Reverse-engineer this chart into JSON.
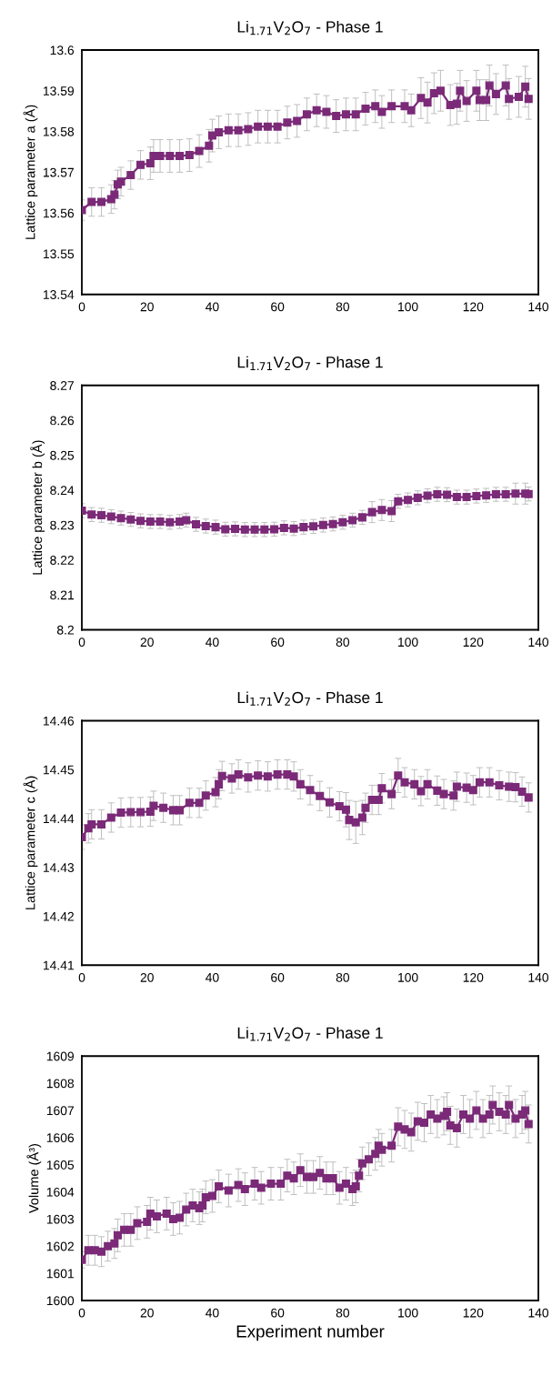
{
  "chart_data": [
    {
      "type": "line",
      "title": "Li$_{1.71}$V$_{2}$O$_{7}$ - Phase 1",
      "ylabel": "Lattice parameter a (Å)",
      "xlim": [
        0,
        140
      ],
      "xticks": [
        0,
        20,
        40,
        60,
        80,
        100,
        120,
        140
      ],
      "ylim": [
        13.54,
        13.6
      ],
      "yticks": [
        13.54,
        13.55,
        13.56,
        13.57,
        13.58,
        13.59,
        13.6
      ],
      "marker": "square",
      "grid": false,
      "series": [
        {
          "color": "#7b2a78",
          "x": [
            0,
            3,
            6,
            9,
            10,
            11,
            12,
            15,
            18,
            21,
            22,
            24,
            27,
            30,
            33,
            36,
            39,
            40,
            42,
            45,
            48,
            51,
            54,
            57,
            60,
            63,
            66,
            69,
            72,
            75,
            78,
            81,
            84,
            87,
            90,
            92,
            95,
            99,
            101,
            104,
            106,
            108,
            110,
            113,
            115,
            116,
            118,
            121,
            122,
            124,
            125,
            127,
            130,
            131,
            134,
            136,
            137
          ],
          "values": [
            13.5607,
            13.5627,
            13.5627,
            13.5634,
            13.5645,
            13.567,
            13.5677,
            13.5693,
            13.5718,
            13.5722,
            13.574,
            13.574,
            13.574,
            13.574,
            13.5742,
            13.5752,
            13.5765,
            13.579,
            13.5798,
            13.5803,
            13.5803,
            13.5806,
            13.5812,
            13.5812,
            13.5812,
            13.5822,
            13.5826,
            13.5842,
            13.5852,
            13.5848,
            13.5838,
            13.5842,
            13.5842,
            13.5856,
            13.5862,
            13.5848,
            13.5862,
            13.5862,
            13.5852,
            13.5882,
            13.5871,
            13.5894,
            13.59,
            13.5865,
            13.5868,
            13.59,
            13.5875,
            13.59,
            13.5877,
            13.5877,
            13.5913,
            13.5892,
            13.5913,
            13.588,
            13.5885,
            13.591,
            13.588
          ],
          "errors": [
            0.0025,
            0.0035,
            0.0035,
            0.0035,
            0.0035,
            0.0035,
            0.0035,
            0.0035,
            0.0035,
            0.004,
            0.004,
            0.004,
            0.004,
            0.004,
            0.004,
            0.004,
            0.004,
            0.004,
            0.004,
            0.004,
            0.004,
            0.004,
            0.004,
            0.004,
            0.004,
            0.004,
            0.004,
            0.004,
            0.004,
            0.004,
            0.004,
            0.004,
            0.004,
            0.004,
            0.004,
            0.004,
            0.004,
            0.004,
            0.004,
            0.005,
            0.005,
            0.005,
            0.005,
            0.005,
            0.005,
            0.005,
            0.005,
            0.005,
            0.005,
            0.005,
            0.005,
            0.005,
            0.005,
            0.005,
            0.005,
            0.005,
            0.005
          ]
        }
      ]
    },
    {
      "type": "line",
      "title": "Li$_{1.71}$V$_{2}$O$_{7}$ - Phase 1",
      "ylabel": "Lattice parameter b (Å)",
      "xlim": [
        0,
        140
      ],
      "xticks": [
        0,
        20,
        40,
        60,
        80,
        100,
        120,
        140
      ],
      "ylim": [
        8.2,
        8.27
      ],
      "yticks": [
        8.2,
        8.21,
        8.22,
        8.23,
        8.24,
        8.25,
        8.26,
        8.27
      ],
      "marker": "square",
      "grid": false,
      "series": [
        {
          "color": "#7b2a78",
          "x": [
            0,
            3,
            6,
            9,
            12,
            15,
            18,
            21,
            24,
            27,
            30,
            32,
            35,
            38,
            41,
            44,
            47,
            50,
            53,
            56,
            59,
            62,
            65,
            68,
            71,
            74,
            77,
            80,
            83,
            86,
            89,
            92,
            95,
            97,
            100,
            103,
            106,
            109,
            112,
            115,
            118,
            121,
            124,
            127,
            130,
            133,
            136,
            137
          ],
          "values": [
            8.2341,
            8.233,
            8.2328,
            8.2324,
            8.232,
            8.2316,
            8.2312,
            8.231,
            8.231,
            8.2308,
            8.231,
            8.2314,
            8.2302,
            8.2297,
            8.2294,
            8.2288,
            8.2289,
            8.2287,
            8.2287,
            8.2287,
            8.2288,
            8.2292,
            8.229,
            8.2294,
            8.2296,
            8.23,
            8.2303,
            8.2308,
            8.2314,
            8.2322,
            8.2337,
            8.2343,
            8.234,
            8.2368,
            8.2372,
            8.2378,
            8.2384,
            8.2388,
            8.2387,
            8.238,
            8.238,
            8.2383,
            8.2385,
            8.2388,
            8.2388,
            8.239,
            8.239,
            8.2389
          ],
          "errors": [
            0.002,
            0.002,
            0.002,
            0.002,
            0.002,
            0.002,
            0.002,
            0.002,
            0.002,
            0.002,
            0.002,
            0.002,
            0.002,
            0.002,
            0.002,
            0.002,
            0.002,
            0.002,
            0.002,
            0.002,
            0.002,
            0.002,
            0.002,
            0.002,
            0.002,
            0.002,
            0.002,
            0.002,
            0.002,
            0.002,
            0.003,
            0.003,
            0.003,
            0.002,
            0.002,
            0.002,
            0.002,
            0.002,
            0.002,
            0.002,
            0.002,
            0.002,
            0.002,
            0.002,
            0.002,
            0.003,
            0.003,
            0.002
          ]
        }
      ]
    },
    {
      "type": "line",
      "title": "Li$_{1.71}$V$_{2}$O$_{7}$ - Phase 1",
      "ylabel": "Lattice parameter c (Å)",
      "xlim": [
        0,
        140
      ],
      "xticks": [
        0,
        20,
        40,
        60,
        80,
        100,
        120,
        140
      ],
      "ylim": [
        14.41,
        14.46
      ],
      "yticks": [
        14.41,
        14.42,
        14.43,
        14.44,
        14.45,
        14.46
      ],
      "marker": "square",
      "grid": false,
      "series": [
        {
          "color": "#7b2a78",
          "x": [
            0,
            2,
            3,
            6,
            9,
            12,
            15,
            18,
            21,
            22,
            25,
            28,
            30,
            33,
            36,
            38,
            41,
            42,
            43,
            46,
            48,
            51,
            54,
            57,
            60,
            63,
            65,
            67,
            70,
            73,
            76,
            79,
            81,
            82,
            84,
            86,
            87,
            89,
            91,
            92,
            95,
            97,
            99,
            102,
            104,
            106,
            109,
            111,
            114,
            115,
            118,
            120,
            122,
            125,
            128,
            131,
            133,
            135,
            137
          ],
          "values": [
            14.4362,
            14.438,
            14.4388,
            14.4388,
            14.4402,
            14.4412,
            14.4413,
            14.4413,
            14.4414,
            14.4426,
            14.4422,
            14.4417,
            14.4417,
            14.4432,
            14.4432,
            14.4447,
            14.4454,
            14.447,
            14.4487,
            14.4482,
            14.449,
            14.4484,
            14.4488,
            14.4486,
            14.449,
            14.449,
            14.4486,
            14.447,
            14.4458,
            14.4446,
            14.4433,
            14.4425,
            14.4418,
            14.4397,
            14.4392,
            14.4402,
            14.4422,
            14.4438,
            14.4438,
            14.4462,
            14.445,
            14.4488,
            14.4474,
            14.447,
            14.4456,
            14.447,
            14.4457,
            14.445,
            14.4447,
            14.4465,
            14.4463,
            14.4458,
            14.4474,
            14.4474,
            14.4468,
            14.4465,
            14.4464,
            14.4455,
            14.4443
          ],
          "errors": [
            0.0025,
            0.003,
            0.003,
            0.003,
            0.003,
            0.003,
            0.003,
            0.003,
            0.003,
            0.003,
            0.003,
            0.003,
            0.003,
            0.003,
            0.003,
            0.003,
            0.003,
            0.003,
            0.003,
            0.003,
            0.003,
            0.003,
            0.003,
            0.003,
            0.003,
            0.003,
            0.003,
            0.003,
            0.003,
            0.003,
            0.003,
            0.003,
            0.0035,
            0.004,
            0.0043,
            0.0035,
            0.003,
            0.003,
            0.003,
            0.003,
            0.003,
            0.0035,
            0.003,
            0.003,
            0.003,
            0.003,
            0.003,
            0.003,
            0.003,
            0.003,
            0.003,
            0.003,
            0.003,
            0.003,
            0.003,
            0.003,
            0.003,
            0.003,
            0.003
          ]
        }
      ]
    },
    {
      "type": "line",
      "title": "Li$_{1.71}$V$_{2}$O$_{7}$ - Phase 1",
      "ylabel": "Volume (Å³)",
      "xlabel": "Experiment number",
      "xlim": [
        0,
        140
      ],
      "xticks": [
        0,
        20,
        40,
        60,
        80,
        100,
        120,
        140
      ],
      "ylim": [
        1600,
        1609
      ],
      "yticks": [
        1600,
        1601,
        1602,
        1603,
        1604,
        1605,
        1606,
        1607,
        1608,
        1609
      ],
      "marker": "square",
      "grid": false,
      "series": [
        {
          "color": "#7b2a78",
          "x": [
            0,
            2,
            4,
            6,
            8,
            10,
            11,
            13,
            15,
            17,
            20,
            21,
            23,
            26,
            28,
            30,
            32,
            34,
            36,
            37,
            38,
            40,
            42,
            45,
            48,
            50,
            53,
            55,
            58,
            61,
            63,
            65,
            67,
            69,
            71,
            73,
            75,
            77,
            79,
            81,
            83,
            84,
            85,
            86,
            88,
            90,
            91,
            92,
            95,
            97,
            99,
            101,
            103,
            105,
            107,
            109,
            111,
            112,
            113,
            115,
            117,
            119,
            121,
            123,
            125,
            126,
            128,
            130,
            131,
            133,
            135,
            136,
            137
          ],
          "values": [
            1601.5,
            1601.85,
            1601.85,
            1601.8,
            1602.0,
            1602.1,
            1602.4,
            1602.6,
            1602.6,
            1602.85,
            1602.9,
            1603.2,
            1603.1,
            1603.2,
            1603.0,
            1603.05,
            1603.35,
            1603.5,
            1603.4,
            1603.5,
            1603.8,
            1603.85,
            1604.2,
            1604.05,
            1604.25,
            1604.1,
            1604.3,
            1604.15,
            1604.3,
            1604.3,
            1604.6,
            1604.5,
            1604.8,
            1604.55,
            1604.55,
            1604.7,
            1604.5,
            1604.5,
            1604.15,
            1604.3,
            1604.1,
            1604.2,
            1604.6,
            1605.05,
            1605.2,
            1605.4,
            1605.7,
            1605.55,
            1605.7,
            1606.4,
            1606.3,
            1606.2,
            1606.6,
            1606.55,
            1606.85,
            1606.7,
            1606.8,
            1606.95,
            1606.45,
            1606.35,
            1606.85,
            1606.7,
            1607.0,
            1606.7,
            1606.85,
            1607.2,
            1606.95,
            1606.85,
            1607.2,
            1606.7,
            1606.85,
            1607.0,
            1606.5
          ],
          "errors": [
            0.3,
            0.55,
            0.55,
            0.55,
            0.55,
            0.55,
            0.6,
            0.6,
            0.6,
            0.6,
            0.6,
            0.6,
            0.6,
            0.6,
            0.6,
            0.6,
            0.6,
            0.6,
            0.6,
            0.6,
            0.6,
            0.6,
            0.6,
            0.6,
            0.6,
            0.6,
            0.6,
            0.6,
            0.6,
            0.6,
            0.6,
            0.6,
            0.6,
            0.6,
            0.6,
            0.6,
            0.6,
            0.6,
            0.6,
            0.6,
            0.6,
            0.6,
            0.6,
            0.6,
            0.6,
            0.6,
            0.6,
            0.6,
            0.6,
            0.7,
            0.7,
            0.7,
            0.7,
            0.7,
            0.7,
            0.7,
            0.7,
            0.7,
            0.7,
            0.7,
            0.7,
            0.7,
            0.7,
            0.7,
            0.7,
            0.7,
            0.7,
            0.7,
            0.7,
            0.7,
            0.7,
            0.7,
            0.7
          ]
        }
      ]
    }
  ]
}
